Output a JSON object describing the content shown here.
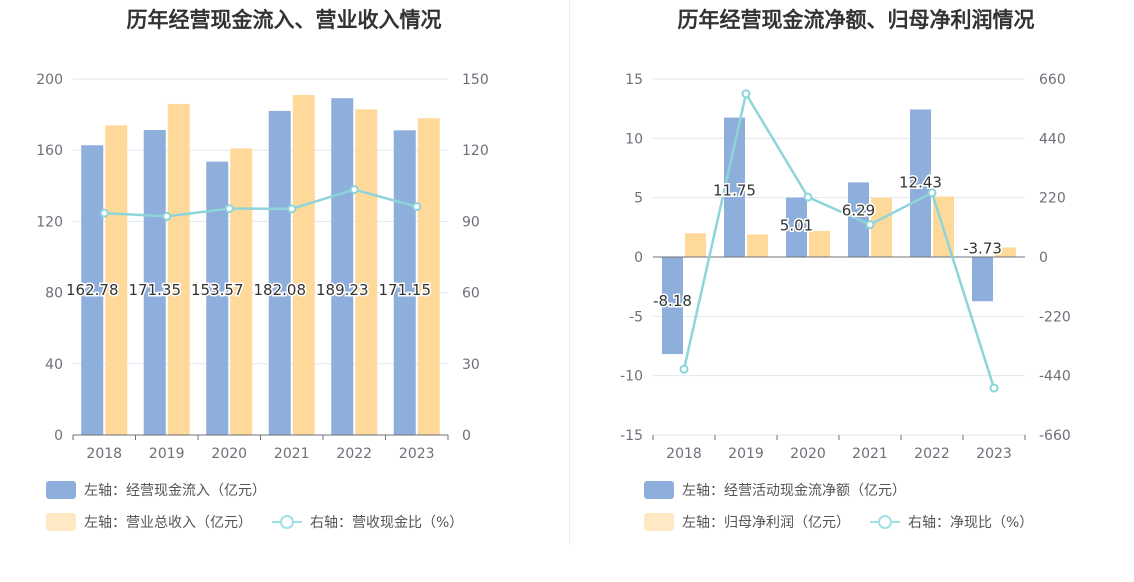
{
  "chart_data": [
    {
      "type": "bar",
      "title": "历年经营现金流入、营业收入情况",
      "categories": [
        "2018",
        "2019",
        "2020",
        "2021",
        "2022",
        "2023"
      ],
      "ylim_left": [
        0,
        200
      ],
      "yticks_left": [
        0,
        40,
        80,
        120,
        160,
        200
      ],
      "ylim_right": [
        0,
        150
      ],
      "yticks_right": [
        0,
        30,
        60,
        90,
        120,
        150
      ],
      "grid": true,
      "legend_position": "bottom-left",
      "series": [
        {
          "name": "左轴：经营现金流入（亿元）",
          "type": "bar",
          "axis": "left",
          "color": "#8eaedb",
          "values": [
            162.78,
            171.35,
            153.57,
            182.08,
            189.23,
            171.15
          ],
          "labels_shown": true
        },
        {
          "name": "左轴：营业总收入（亿元）",
          "type": "bar",
          "axis": "left",
          "color": "#ffd99a",
          "values": [
            174,
            186,
            161,
            191,
            183,
            178
          ],
          "labels_shown": false
        },
        {
          "name": "右轴：营收现金比（%）",
          "type": "line",
          "axis": "right",
          "color": "#8dd5da",
          "values": [
            93.5,
            92.1,
            95.4,
            95.3,
            103.4,
            96.2
          ],
          "labels_shown": false
        }
      ]
    },
    {
      "type": "bar",
      "title": "历年经营现金流净额、归母净利润情况",
      "categories": [
        "2018",
        "2019",
        "2020",
        "2021",
        "2022",
        "2023"
      ],
      "ylim_left": [
        -15,
        15
      ],
      "yticks_left": [
        -15,
        -10,
        -5,
        0,
        5,
        10,
        15
      ],
      "ylim_right": [
        -660,
        660
      ],
      "yticks_right": [
        -660,
        -440,
        -220,
        0,
        220,
        440,
        660
      ],
      "grid": true,
      "legend_position": "bottom-left",
      "series": [
        {
          "name": "左轴：经营活动现金流净额（亿元）",
          "type": "bar",
          "axis": "left",
          "color": "#8eaedb",
          "values": [
            -8.18,
            11.75,
            5.01,
            6.29,
            12.43,
            -3.73
          ],
          "labels_shown": true
        },
        {
          "name": "左轴：归母净利润（亿元）",
          "type": "bar",
          "axis": "left",
          "color": "#ffd99a",
          "values": [
            2.0,
            1.9,
            2.2,
            5.0,
            5.1,
            0.8
          ],
          "labels_shown": false
        },
        {
          "name": "右轴：净现比（%）",
          "type": "line",
          "axis": "right",
          "color": "#8dd5da",
          "values": [
            -416,
            605,
            222,
            120,
            238,
            -486
          ],
          "labels_shown": false
        }
      ]
    }
  ]
}
